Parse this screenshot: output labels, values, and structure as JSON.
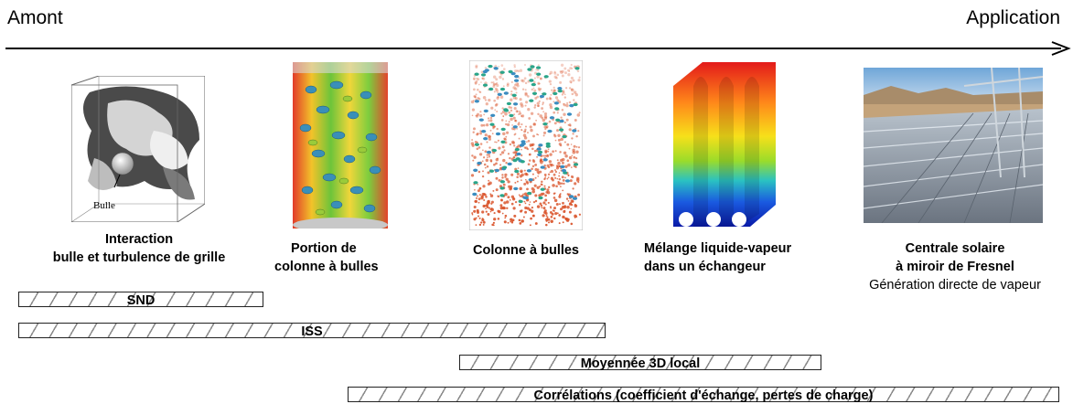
{
  "axis": {
    "left_label": "Amont",
    "right_label": "Application"
  },
  "panels": [
    {
      "id": "interaction",
      "lines": [
        "Interaction",
        "bulle et turbulence de grille"
      ],
      "image_label": "Bulle"
    },
    {
      "id": "portion",
      "lines": [
        "Portion de",
        "colonne à bulles"
      ]
    },
    {
      "id": "colonne",
      "lines": [
        "Colonne à bulles"
      ]
    },
    {
      "id": "melange",
      "lines": [
        "Mélange liquide-vapeur",
        "dans un échangeur"
      ]
    },
    {
      "id": "centrale",
      "lines": [
        "Centrale solaire",
        "à miroir de Fresnel"
      ],
      "subline": "Génération directe de  vapeur"
    }
  ],
  "methods": [
    {
      "label": "SND"
    },
    {
      "label": "ISS"
    },
    {
      "label": "Moyennée 3D local"
    },
    {
      "label": "Corrélations (coefficient d'échange,  pertes de charge)"
    }
  ],
  "colors": {
    "hatch": "#8a8a8a",
    "arrow": "#000000"
  }
}
